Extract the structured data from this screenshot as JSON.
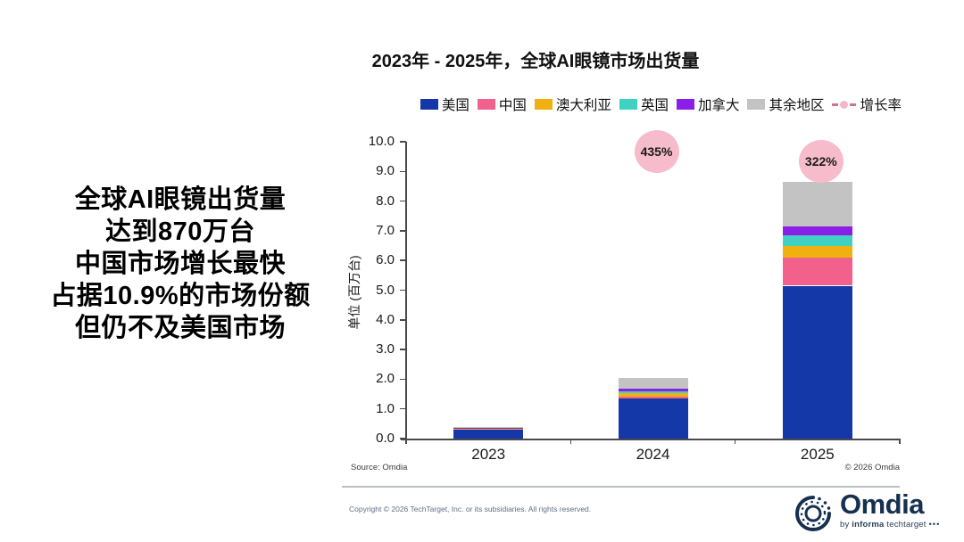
{
  "title": "2023年 - 2025年，全球AI眼镜市场出货量",
  "headline": {
    "lines": [
      "全球AI眼镜出货量",
      "达到870万台",
      "中国市场增长最快",
      "占据10.9%的市场份额",
      "但仍不及美国市场"
    ]
  },
  "chart_data": {
    "type": "bar",
    "stacked": true,
    "title": "2023年 - 2025年，全球AI眼镜市场出货量",
    "categories": [
      "2023",
      "2024",
      "2025"
    ],
    "series": [
      {
        "name": "美国",
        "color": "#1538a8",
        "values": [
          0.3,
          1.35,
          5.15
        ]
      },
      {
        "name": "中国",
        "color": "#f2608c",
        "values": [
          0.03,
          0.07,
          0.95
        ]
      },
      {
        "name": "澳大利亚",
        "color": "#efb010",
        "values": [
          0.01,
          0.12,
          0.4
        ]
      },
      {
        "name": "英国",
        "color": "#3fd2c3",
        "values": [
          0.01,
          0.05,
          0.35
        ]
      },
      {
        "name": "加拿大",
        "color": "#8b1fe8",
        "values": [
          0.01,
          0.1,
          0.3
        ]
      },
      {
        "name": "其余地区",
        "color": "#c3c3c3",
        "values": [
          0.02,
          0.36,
          1.5
        ]
      }
    ],
    "growth": {
      "name": "增长率",
      "bubble_color": "#f6bccb",
      "labels": [
        {
          "category": "2024",
          "text": "435%"
        },
        {
          "category": "2025",
          "text": "322%"
        }
      ]
    },
    "ylabel": "单位 (百万台)",
    "ylim": [
      0,
      10
    ],
    "ytick_step": 1.0,
    "grid": false,
    "legend_position": "top-right"
  },
  "footnotes": {
    "source": "Source: Omdia",
    "copyright_chart": "© 2026 Omdia",
    "copyright_footer": "Copyright © 2026 TechTarget, Inc. or its subsidiaries. All rights reserved."
  },
  "logo": {
    "wordmark": "Omdia",
    "by": "by",
    "informa": "informa",
    "techtarget": "techtarget",
    "dots": "•••"
  }
}
